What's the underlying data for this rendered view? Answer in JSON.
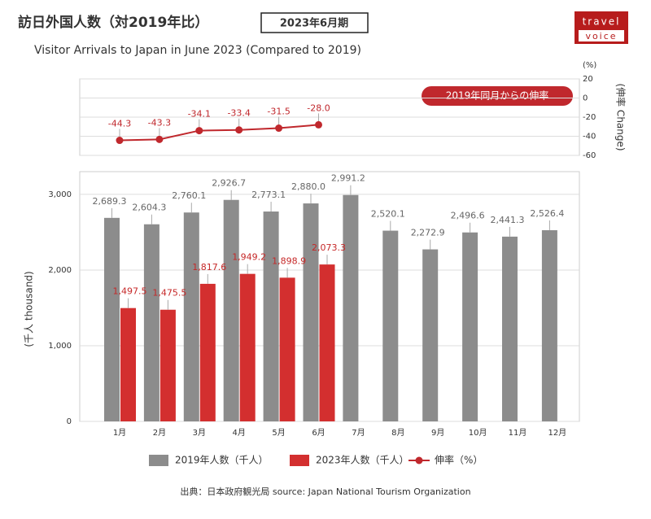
{
  "header": {
    "title": "訪日外国人数（対2019年比）",
    "badge": "2023年6月期",
    "subtitle": "Visitor Arrivals to Japan in June 2023 (Compared to 2019)",
    "logo": [
      "travel",
      "voice"
    ]
  },
  "source": "出典：日本政府観光局  source: Japan National Tourism Organization",
  "chart_data": [
    {
      "type": "line",
      "y2label": "(伸率 Change)",
      "y2unit": "(%)",
      "annotation": "2019年同月からの伸率",
      "y2lim": [
        -60,
        20
      ],
      "y2ticks": [
        20,
        0,
        -20,
        -40,
        -60
      ],
      "grid": true,
      "series": [
        {
          "name": "伸率（%）",
          "color": "#c0282d",
          "axis": "y2",
          "values": [
            -44.3,
            -43.3,
            -34.1,
            -33.4,
            -31.5,
            -28.0,
            null,
            null,
            null,
            null,
            null,
            null
          ],
          "value_labels": [
            "-44.3",
            "-43.3",
            "-34.1",
            "-33.4",
            "-31.5",
            "-28.0",
            null,
            null,
            null,
            null,
            null,
            null
          ]
        }
      ]
    },
    {
      "type": "bar",
      "ylabel": "(千人 thousand)",
      "categories": [
        "1月",
        "2月",
        "3月",
        "4月",
        "5月",
        "6月",
        "7月",
        "8月",
        "9月",
        "10月",
        "11月",
        "12月"
      ],
      "ylim": [
        0,
        3300
      ],
      "yticks": [
        0,
        {
          "value": 1000,
          "label": "1,000"
        },
        {
          "value": 2000,
          "label": "2,000"
        },
        {
          "value": 3000,
          "label": "3,000"
        }
      ],
      "grid": true,
      "series": [
        {
          "name": "2019年人数（千人）",
          "color": "#8c8c8c",
          "values": [
            2689.3,
            2604.3,
            2760.1,
            2926.7,
            2773.1,
            2880.0,
            2991.2,
            2520.1,
            2272.9,
            2496.6,
            2441.3,
            2526.4
          ],
          "value_labels": [
            "2,689.3",
            "2,604.3",
            "2,760.1",
            "2,926.7",
            "2,773.1",
            "2,880.0",
            "2,991.2",
            "2,520.1",
            "2,272.9",
            "2,496.6",
            "2,441.3",
            "2,526.4"
          ]
        },
        {
          "name": "2023年人数（千人）",
          "color": "#d32f2f",
          "values": [
            1497.5,
            1475.5,
            1817.6,
            1949.2,
            1898.9,
            2073.3,
            null,
            null,
            null,
            null,
            null,
            null
          ],
          "value_labels": [
            "1,497.5",
            "1,475.5",
            "1,817.6",
            "1,949.2",
            "1,898.9",
            "2,073.3",
            null,
            null,
            null,
            null,
            null,
            null
          ]
        }
      ]
    }
  ]
}
